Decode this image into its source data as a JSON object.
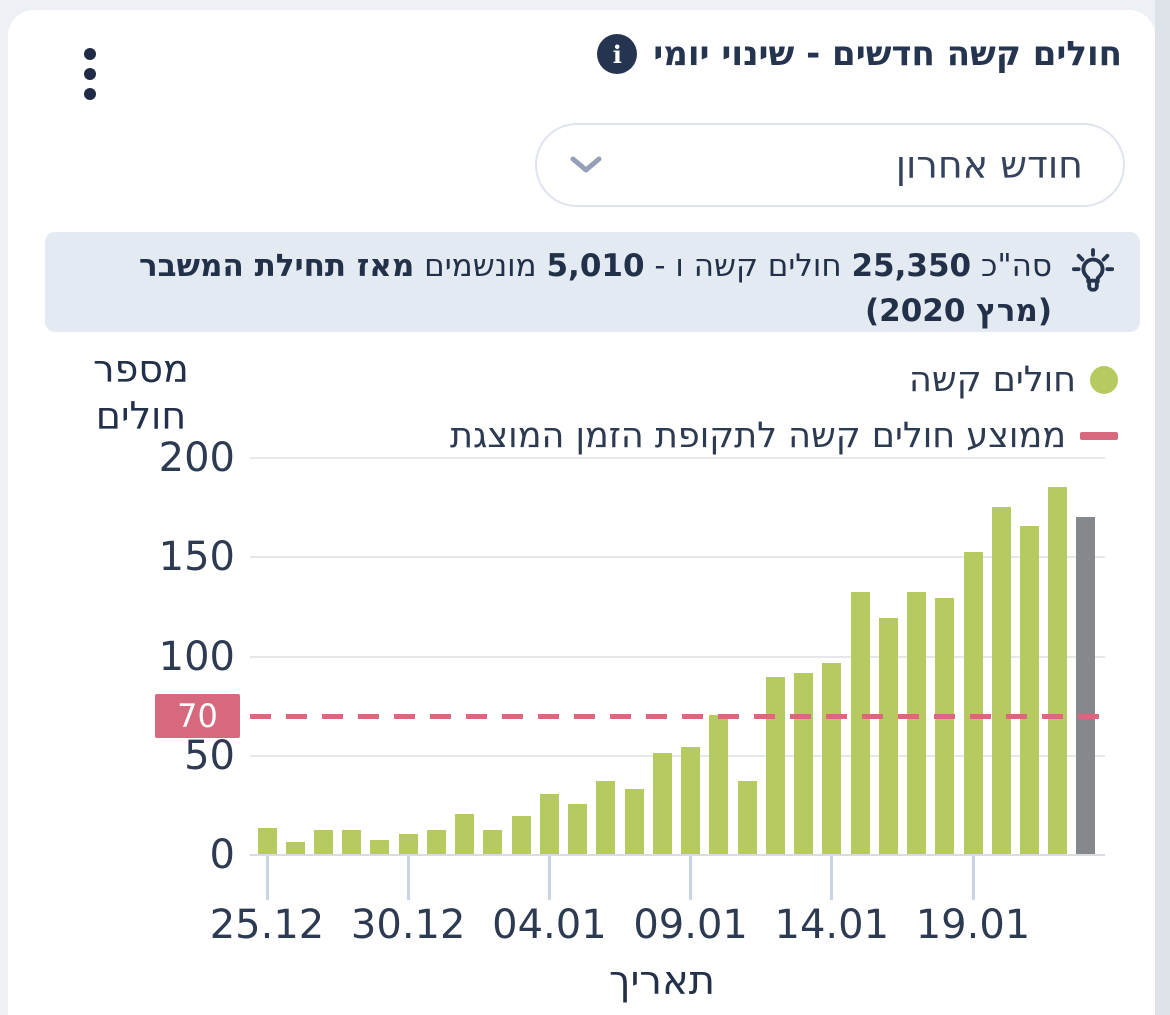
{
  "header": {
    "title": "חולים קשה חדשים - שינוי יומי",
    "info_icon_glyph": "i",
    "menu_icon": "kebab-vertical"
  },
  "filter": {
    "selected_value": "חודש אחרון",
    "chevron_icon": "chevron-down"
  },
  "banner": {
    "icon": "lightbulb",
    "seg_prefix": "סה\"כ ",
    "total_severe": "25,350",
    "seg_mid1": " חולים קשה ו - ",
    "total_ventilated": "5,010",
    "seg_mid2": " מונשמים ",
    "seg_bold_suffix": "מאז תחילת המשבר (מרץ 2020)"
  },
  "chart_data": {
    "type": "bar",
    "ylabel": "מספר חולים",
    "xlabel": "תאריך",
    "ylim": [
      0,
      200
    ],
    "yticks": [
      0,
      50,
      100,
      150,
      200
    ],
    "grid": true,
    "legend_position": "top-right",
    "legend": [
      {
        "label": "חולים קשה",
        "marker": "circle",
        "color": "#b5ca5f"
      },
      {
        "label": "ממוצע חולים קשה לתקופת הזמן המוצגת",
        "marker": "line",
        "color": "#d7697f"
      }
    ],
    "series": [
      {
        "name": "חולים קשה",
        "values": [
          13,
          6,
          12,
          12,
          7,
          10,
          12,
          20,
          12,
          19,
          30,
          25,
          37,
          33,
          51,
          54,
          70,
          37,
          89,
          91,
          96,
          132,
          119,
          132,
          129,
          152,
          175,
          165,
          185,
          170
        ]
      }
    ],
    "bar_color": "#b5ca5f",
    "last_bar_color": "#85888c",
    "xtick_labels": [
      "25.12",
      "30.12",
      "04.01",
      "09.01",
      "14.01",
      "19.01"
    ],
    "xtick_indices": [
      0,
      5,
      10,
      15,
      20,
      25
    ],
    "average_line": {
      "value": 70,
      "label": "70",
      "color": "#d7697f",
      "style": "dashed"
    }
  }
}
